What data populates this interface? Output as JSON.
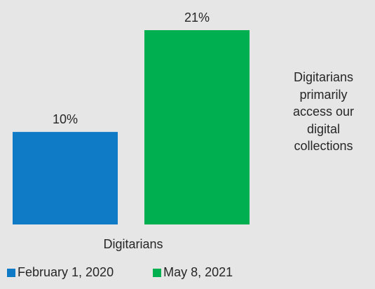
{
  "chart_data": {
    "type": "bar",
    "categories": [
      "Digitarians"
    ],
    "series": [
      {
        "name": "February 1, 2020",
        "values": [
          10
        ],
        "label": "10%",
        "color": "#0f7bc6"
      },
      {
        "name": "May 8, 2021",
        "values": [
          21
        ],
        "label": "21%",
        "color": "#00b050"
      }
    ],
    "ylim": [
      0,
      21
    ],
    "grid": false,
    "legend": "bottom"
  },
  "side_note": "Digitarians\nprimarily\naccess our\ndigital\ncollections",
  "colors": {
    "background": "#e6e6e6",
    "text": "#262626"
  }
}
